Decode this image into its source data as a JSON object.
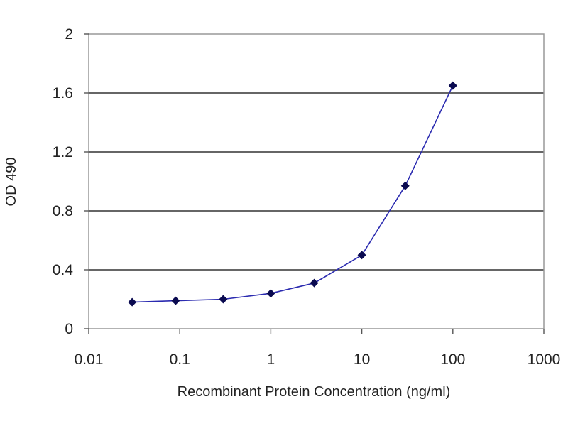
{
  "chart_data": {
    "type": "line",
    "xlabel": "Recombinant Protein Concentration (ng/ml)",
    "ylabel": "OD 490",
    "x_scale": "log",
    "xlim": [
      0.01,
      1000
    ],
    "ylim": [
      0,
      2
    ],
    "x_ticks": [
      "0.01",
      "0.1",
      "1",
      "10",
      "100",
      "1000"
    ],
    "y_ticks": [
      "0",
      "0.4",
      "0.8",
      "1.2",
      "1.6",
      "2"
    ],
    "grid": "horizontal",
    "series": [
      {
        "x": [
          0.03,
          0.09,
          0.3,
          1,
          3,
          10,
          30,
          100
        ],
        "y": [
          0.18,
          0.19,
          0.2,
          0.24,
          0.31,
          0.5,
          0.97,
          1.65
        ],
        "color": "#2b2bb0",
        "marker": "diamond",
        "marker_color": "#0a0a50"
      }
    ]
  }
}
